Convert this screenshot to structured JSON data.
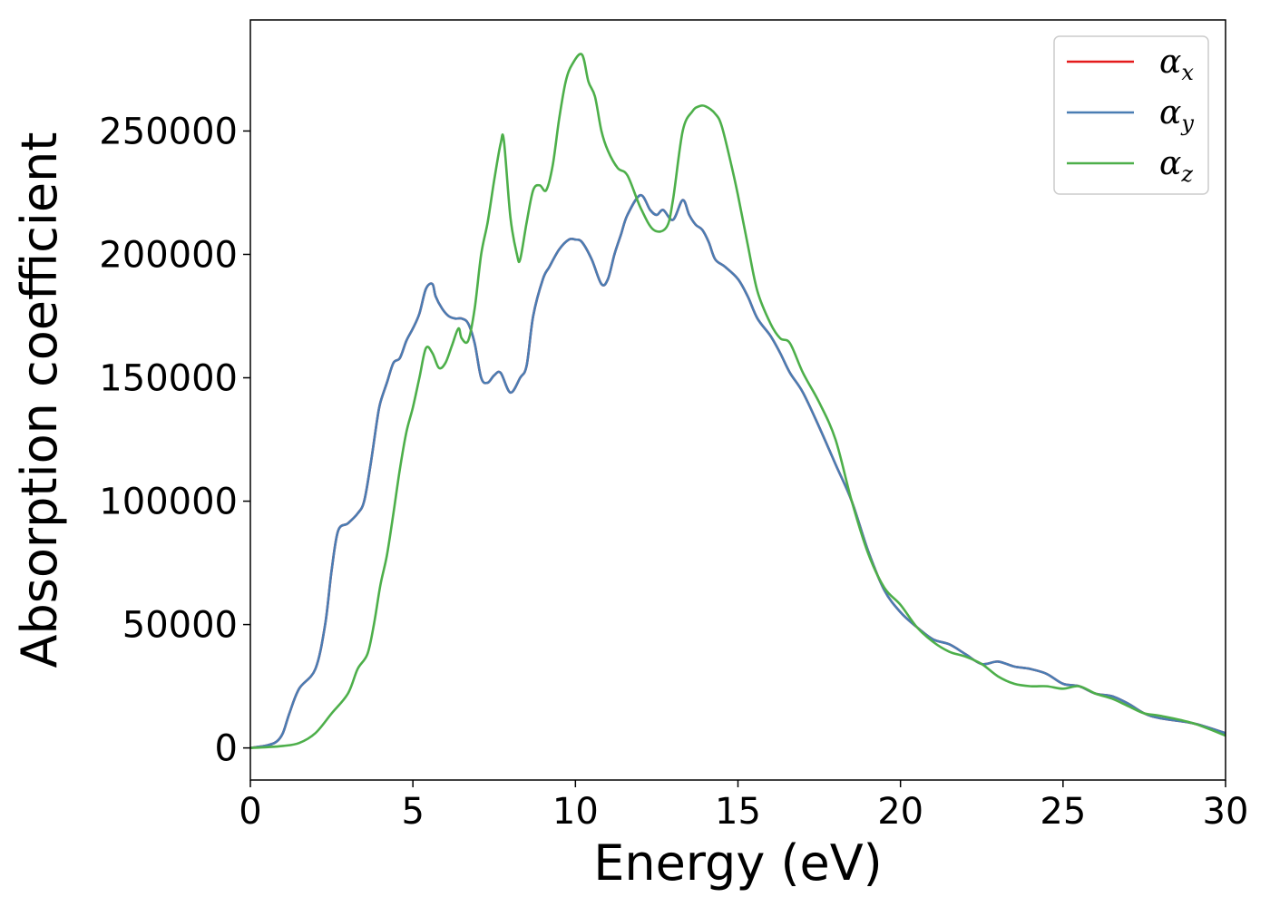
{
  "chart_data": {
    "type": "line",
    "title": "",
    "xlabel": "Energy (eV)",
    "ylabel": "Absorption coefficient",
    "xlim": [
      0,
      30
    ],
    "ylim": [
      -13000,
      295000
    ],
    "xticks": [
      0,
      5,
      10,
      15,
      20,
      25,
      30
    ],
    "yticks": [
      0,
      50000,
      100000,
      150000,
      200000,
      250000
    ],
    "grid": false,
    "legend_position": "top-right",
    "series": [
      {
        "name": "α",
        "subscript": "x",
        "color": "#e41a1c",
        "x": [
          0,
          0.5,
          0.8,
          1.0,
          1.2,
          1.5,
          2.0,
          2.3,
          2.5,
          2.7,
          3.0,
          3.3,
          3.5,
          3.7,
          3.9,
          4.0,
          4.2,
          4.4,
          4.6,
          4.8,
          5.0,
          5.2,
          5.4,
          5.6,
          5.7,
          5.9,
          6.1,
          6.3,
          6.5,
          6.7,
          6.9,
          7.1,
          7.3,
          7.5,
          7.7,
          8.0,
          8.3,
          8.5,
          8.7,
          9.0,
          9.2,
          9.5,
          9.8,
          10.0,
          10.2,
          10.5,
          10.8,
          11.0,
          11.2,
          11.4,
          11.6,
          12.0,
          12.3,
          12.5,
          12.7,
          13.0,
          13.3,
          13.5,
          13.7,
          13.9,
          14.1,
          14.3,
          14.6,
          15.0,
          15.3,
          15.6,
          16.0,
          16.3,
          16.6,
          17.0,
          17.5,
          18.0,
          18.5,
          19.0,
          19.5,
          20.0,
          20.5,
          21.0,
          21.5,
          22.0,
          22.5,
          23.0,
          23.5,
          24.0,
          24.5,
          25.0,
          25.5,
          26.0,
          26.5,
          27.0,
          27.5,
          28.0,
          29.0,
          30.0
        ],
        "y": [
          0,
          1000,
          2500,
          6000,
          14000,
          24000,
          32000,
          50000,
          72000,
          88000,
          91000,
          95000,
          100000,
          115000,
          133000,
          140000,
          148000,
          156000,
          158000,
          165000,
          170000,
          176000,
          186000,
          188000,
          183000,
          178000,
          175000,
          174000,
          174000,
          172000,
          164000,
          150000,
          148000,
          151000,
          152000,
          144000,
          150000,
          155000,
          175000,
          190000,
          195000,
          202000,
          206000,
          206000,
          205000,
          198000,
          188000,
          190000,
          200000,
          208000,
          216000,
          224000,
          218000,
          216000,
          218000,
          214000,
          222000,
          216000,
          212000,
          210000,
          205000,
          198000,
          195000,
          190000,
          183000,
          174000,
          167000,
          160000,
          152000,
          144000,
          130000,
          115000,
          100000,
          80000,
          64000,
          55000,
          49000,
          44000,
          42000,
          38000,
          34000,
          35000,
          33000,
          32000,
          30000,
          26000,
          25000,
          22000,
          21000,
          18000,
          14000,
          12000,
          10000,
          6000
        ]
      },
      {
        "name": "α",
        "subscript": "y",
        "color": "#4a7db3",
        "x": [
          0,
          0.5,
          0.8,
          1.0,
          1.2,
          1.5,
          2.0,
          2.3,
          2.5,
          2.7,
          3.0,
          3.3,
          3.5,
          3.7,
          3.9,
          4.0,
          4.2,
          4.4,
          4.6,
          4.8,
          5.0,
          5.2,
          5.4,
          5.6,
          5.7,
          5.9,
          6.1,
          6.3,
          6.5,
          6.7,
          6.9,
          7.1,
          7.3,
          7.5,
          7.7,
          8.0,
          8.3,
          8.5,
          8.7,
          9.0,
          9.2,
          9.5,
          9.8,
          10.0,
          10.2,
          10.5,
          10.8,
          11.0,
          11.2,
          11.4,
          11.6,
          12.0,
          12.3,
          12.5,
          12.7,
          13.0,
          13.3,
          13.5,
          13.7,
          13.9,
          14.1,
          14.3,
          14.6,
          15.0,
          15.3,
          15.6,
          16.0,
          16.3,
          16.6,
          17.0,
          17.5,
          18.0,
          18.5,
          19.0,
          19.5,
          20.0,
          20.5,
          21.0,
          21.5,
          22.0,
          22.5,
          23.0,
          23.5,
          24.0,
          24.5,
          25.0,
          25.5,
          26.0,
          26.5,
          27.0,
          27.5,
          28.0,
          29.0,
          30.0
        ],
        "y": [
          0,
          1000,
          2500,
          6000,
          14000,
          24000,
          32000,
          50000,
          72000,
          88000,
          91000,
          95000,
          100000,
          115000,
          133000,
          140000,
          148000,
          156000,
          158000,
          165000,
          170000,
          176000,
          186000,
          188000,
          183000,
          178000,
          175000,
          174000,
          174000,
          172000,
          164000,
          150000,
          148000,
          151000,
          152000,
          144000,
          150000,
          155000,
          175000,
          190000,
          195000,
          202000,
          206000,
          206000,
          205000,
          198000,
          188000,
          190000,
          200000,
          208000,
          216000,
          224000,
          218000,
          216000,
          218000,
          214000,
          222000,
          216000,
          212000,
          210000,
          205000,
          198000,
          195000,
          190000,
          183000,
          174000,
          167000,
          160000,
          152000,
          144000,
          130000,
          115000,
          100000,
          80000,
          64000,
          55000,
          49000,
          44000,
          42000,
          38000,
          34000,
          35000,
          33000,
          32000,
          30000,
          26000,
          25000,
          22000,
          21000,
          18000,
          14000,
          12000,
          10000,
          6000
        ]
      },
      {
        "name": "α",
        "subscript": "z",
        "color": "#4daf4a",
        "x": [
          0,
          0.5,
          1.0,
          1.5,
          2.0,
          2.5,
          3.0,
          3.3,
          3.6,
          3.8,
          4.0,
          4.2,
          4.4,
          4.6,
          4.8,
          5.0,
          5.2,
          5.4,
          5.6,
          5.8,
          6.0,
          6.2,
          6.4,
          6.5,
          6.7,
          6.9,
          7.1,
          7.3,
          7.5,
          7.7,
          7.8,
          8.0,
          8.2,
          8.3,
          8.5,
          8.7,
          8.9,
          9.1,
          9.3,
          9.5,
          9.7,
          9.9,
          10.2,
          10.4,
          10.6,
          10.8,
          11.0,
          11.3,
          11.6,
          12.0,
          12.4,
          12.8,
          13.0,
          13.3,
          13.6,
          13.8,
          14.0,
          14.3,
          14.5,
          14.8,
          15.0,
          15.3,
          15.6,
          16.0,
          16.3,
          16.6,
          17.0,
          17.5,
          18.0,
          18.5,
          19.0,
          19.5,
          20.0,
          20.5,
          21.0,
          21.5,
          22.0,
          22.5,
          23.0,
          23.5,
          24.0,
          24.5,
          25.0,
          25.5,
          26.0,
          26.5,
          27.0,
          27.5,
          28.0,
          29.0,
          30.0
        ],
        "y": [
          0,
          300,
          800,
          2000,
          6000,
          14000,
          22000,
          32000,
          38000,
          50000,
          66000,
          78000,
          95000,
          113000,
          128000,
          138000,
          150000,
          162000,
          160000,
          154000,
          156000,
          163000,
          170000,
          166000,
          165000,
          178000,
          200000,
          213000,
          230000,
          245000,
          246000,
          215000,
          200000,
          198000,
          213000,
          226000,
          228000,
          226000,
          236000,
          255000,
          270000,
          277000,
          281000,
          270000,
          264000,
          250000,
          242000,
          235000,
          232000,
          219000,
          210000,
          211000,
          222000,
          250000,
          258000,
          260000,
          260000,
          257000,
          252000,
          236000,
          224000,
          204000,
          185000,
          172000,
          166000,
          164000,
          152000,
          140000,
          125000,
          100000,
          79000,
          65000,
          58000,
          49000,
          43000,
          39000,
          37000,
          34000,
          29000,
          26000,
          25000,
          25000,
          24000,
          25000,
          22000,
          20000,
          17000,
          14000,
          13000,
          10000,
          5000
        ]
      }
    ]
  }
}
